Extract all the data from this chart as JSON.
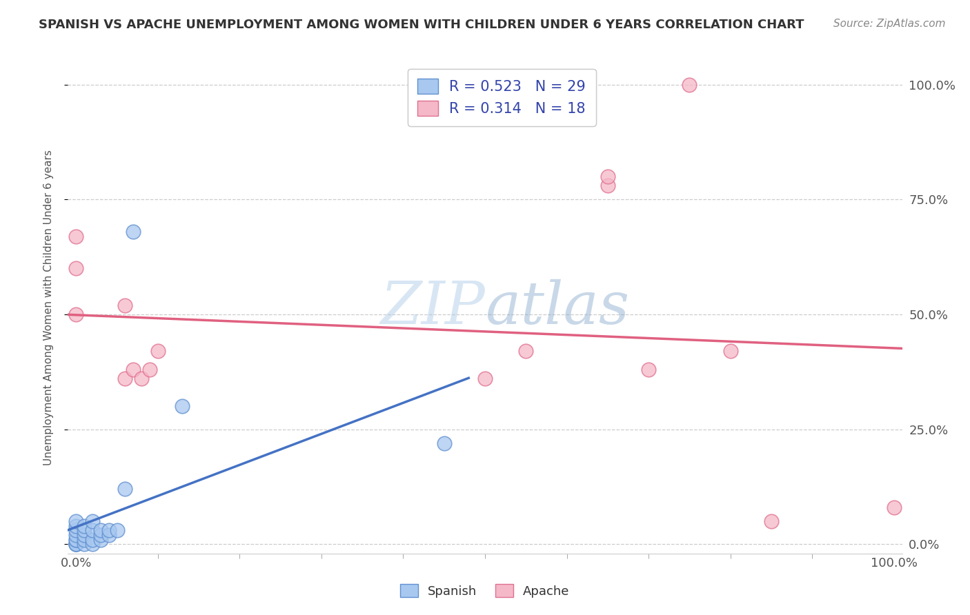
{
  "title": "SPANISH VS APACHE UNEMPLOYMENT AMONG WOMEN WITH CHILDREN UNDER 6 YEARS CORRELATION CHART",
  "source": "Source: ZipAtlas.com",
  "ylabel": "Unemployment Among Women with Children Under 6 years",
  "watermark_zip": "ZIP",
  "watermark_atlas": "atlas",
  "legend_spanish": {
    "R": 0.523,
    "N": 29,
    "label": "Spanish"
  },
  "legend_apache": {
    "R": 0.314,
    "N": 18,
    "label": "Apache"
  },
  "spanish_color": "#a8c8f0",
  "apache_color": "#f5b8c8",
  "spanish_edge_color": "#6090d0",
  "apache_edge_color": "#e07090",
  "spanish_line_color": "#4472c4",
  "apache_line_color": "#e06080",
  "spanish_x": [
    0.0,
    0.0,
    0.0,
    0.0,
    0.0,
    0.0,
    0.0,
    0.0,
    0.0,
    0.0,
    0.01,
    0.01,
    0.01,
    0.01,
    0.01,
    0.02,
    0.02,
    0.02,
    0.02,
    0.03,
    0.03,
    0.03,
    0.04,
    0.04,
    0.05,
    0.06,
    0.07,
    0.13,
    0.45
  ],
  "spanish_y": [
    0.0,
    0.0,
    0.0,
    0.0,
    0.01,
    0.01,
    0.02,
    0.03,
    0.04,
    0.05,
    0.0,
    0.01,
    0.02,
    0.03,
    0.04,
    0.0,
    0.01,
    0.03,
    0.05,
    0.01,
    0.02,
    0.03,
    0.02,
    0.03,
    0.03,
    0.12,
    0.68,
    0.3,
    0.22
  ],
  "apache_x": [
    0.0,
    0.0,
    0.0,
    0.06,
    0.06,
    0.07,
    0.08,
    0.09,
    0.1,
    0.5,
    0.55,
    0.65,
    0.65,
    0.7,
    0.75,
    0.8,
    0.85,
    1.0
  ],
  "apache_y": [
    0.5,
    0.6,
    0.67,
    0.36,
    0.52,
    0.38,
    0.36,
    0.38,
    0.42,
    0.36,
    0.42,
    0.78,
    0.8,
    0.38,
    1.0,
    0.42,
    0.05,
    0.08
  ],
  "xlim": [
    -0.01,
    1.01
  ],
  "ylim": [
    -0.02,
    1.05
  ],
  "ytick_positions": [
    0.0,
    0.25,
    0.5,
    0.75,
    1.0
  ],
  "ytick_labels_right": [
    "0.0%",
    "25.0%",
    "50.0%",
    "75.0%",
    "100.0%"
  ],
  "xtick_positions": [
    0.0,
    0.5,
    1.0
  ],
  "xtick_labels": [
    "0.0%",
    "",
    "100.0%"
  ],
  "background_color": "#ffffff",
  "grid_color": "#cccccc",
  "title_fontsize": 13,
  "source_fontsize": 11,
  "tick_fontsize": 13
}
